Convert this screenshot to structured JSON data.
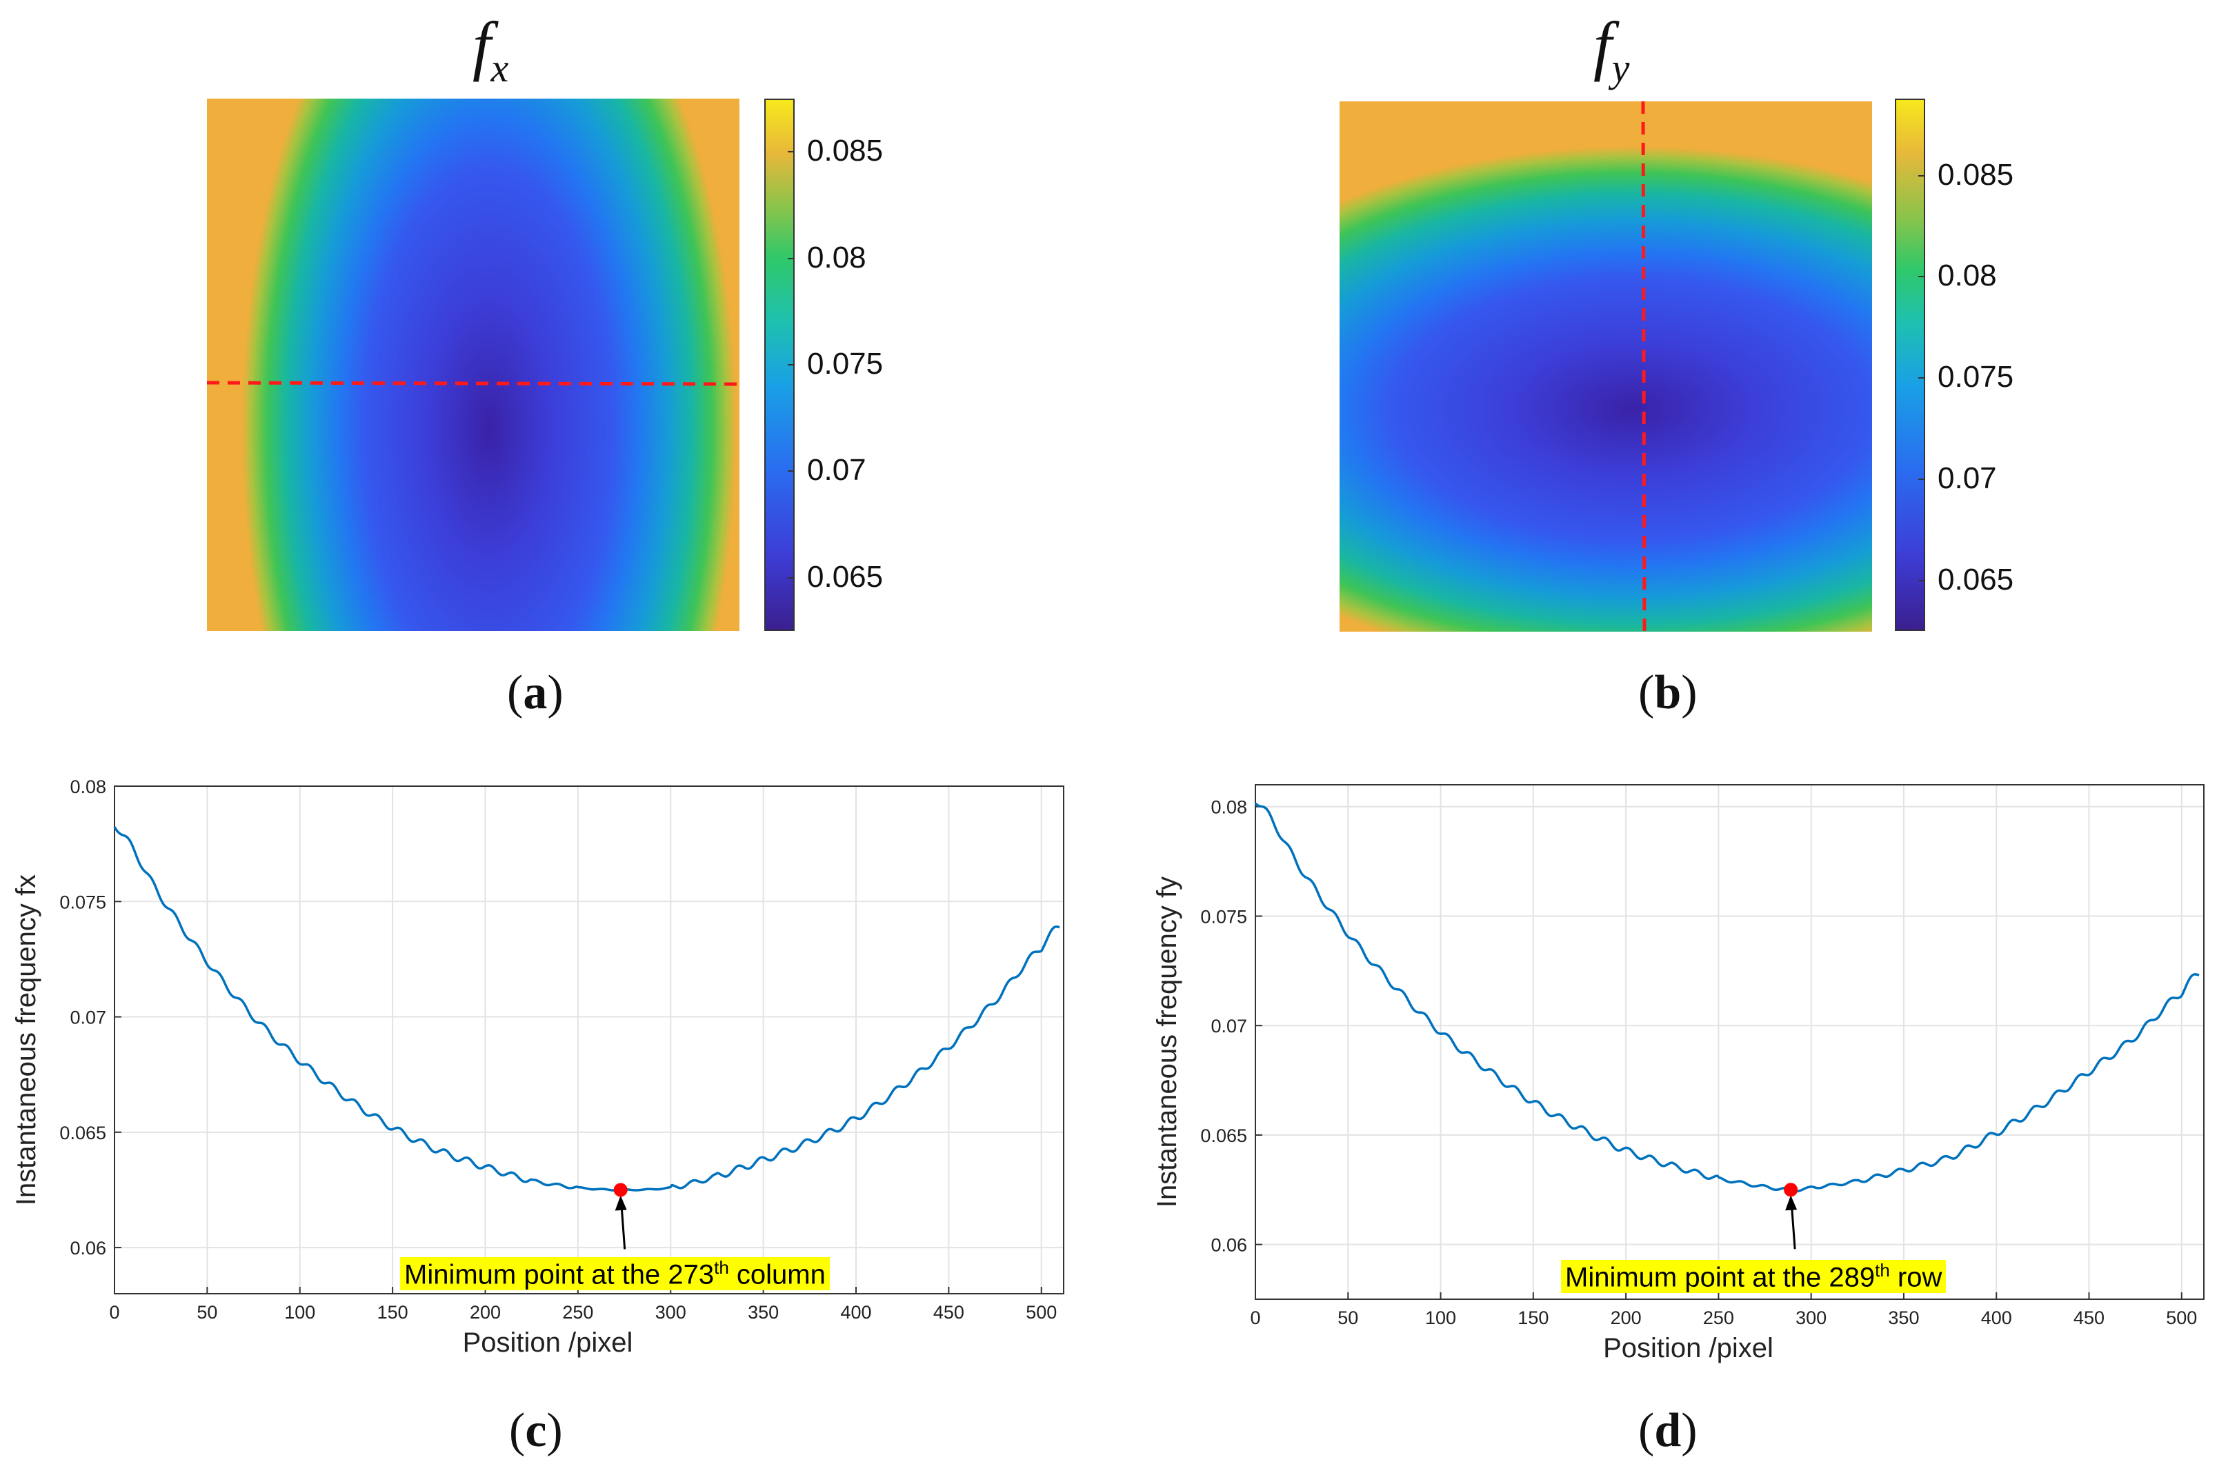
{
  "panels": {
    "a": {
      "label": "a",
      "title_main": "f",
      "title_sub": "x",
      "colorbar_ticks": [
        "0.085",
        "0.08",
        "0.075",
        "0.07",
        "0.065"
      ],
      "colorbar_tick_values": [
        0.085,
        0.08,
        0.075,
        0.07,
        0.065
      ],
      "colorbar_range": [
        0.0625,
        0.0875
      ]
    },
    "b": {
      "label": "b",
      "title_main": "f",
      "title_sub": "y",
      "colorbar_ticks": [
        "0.085",
        "0.08",
        "0.075",
        "0.07",
        "0.065"
      ],
      "colorbar_tick_values": [
        0.085,
        0.08,
        0.075,
        0.07,
        0.065
      ],
      "colorbar_range": [
        0.0625,
        0.0888
      ]
    },
    "c": {
      "label": "c",
      "annotation_prefix": "Minimum point at the 273",
      "annotation_sup": "th",
      "annotation_suffix": " column"
    },
    "d": {
      "label": "d",
      "annotation_prefix": "Minimum point at the 289",
      "annotation_sup": "th",
      "annotation_suffix": " row"
    }
  },
  "colors": {
    "line": "#0072bd",
    "marker": "#ff0000",
    "dashed": "#ff1a1a",
    "highlight": "#ffff00"
  },
  "chart_data": [
    {
      "type": "heatmap",
      "title": "f_x",
      "colorbar_ticks": [
        0.065,
        0.07,
        0.075,
        0.08,
        0.085
      ],
      "colorbar_range": [
        0.0625,
        0.0875
      ],
      "cross_section": "horizontal dashed line"
    },
    {
      "type": "heatmap",
      "title": "f_y",
      "colorbar_ticks": [
        0.065,
        0.07,
        0.075,
        0.08,
        0.085
      ],
      "colorbar_range": [
        0.0625,
        0.0888
      ],
      "cross_section": "vertical dashed line"
    },
    {
      "type": "line",
      "xlabel": "Position /pixel",
      "ylabel": "Instantaneous frequency fx",
      "xlim": [
        0,
        512
      ],
      "ylim": [
        0.058,
        0.08
      ],
      "xticks": [
        0,
        50,
        100,
        150,
        200,
        250,
        300,
        350,
        400,
        450,
        500
      ],
      "yticks": [
        0.06,
        0.065,
        0.07,
        0.075,
        0.08
      ],
      "ytick_labels": [
        "0.06",
        "0.065",
        "0.07",
        "0.075",
        "0.08"
      ],
      "min_point": [
        273,
        0.0625
      ],
      "series": [
        {
          "name": "fx",
          "x": [
            0,
            25,
            50,
            75,
            100,
            125,
            150,
            175,
            200,
            225,
            250,
            273,
            300,
            325,
            350,
            375,
            400,
            425,
            450,
            475,
            500,
            510
          ],
          "values": [
            0.0783,
            0.0752,
            0.0724,
            0.07,
            0.0681,
            0.0665,
            0.0652,
            0.0642,
            0.0635,
            0.0629,
            0.0626,
            0.0625,
            0.0626,
            0.0631,
            0.0638,
            0.0646,
            0.0656,
            0.067,
            0.0687,
            0.0707,
            0.073,
            0.0739
          ]
        }
      ]
    },
    {
      "type": "line",
      "xlabel": "Position /pixel",
      "ylabel": "Instantaneous frequency fy",
      "xlim": [
        0,
        512
      ],
      "ylim": [
        0.0575,
        0.081
      ],
      "xticks": [
        0,
        50,
        100,
        150,
        200,
        250,
        300,
        350,
        400,
        450,
        500
      ],
      "yticks": [
        0.06,
        0.065,
        0.07,
        0.075,
        0.08
      ],
      "ytick_labels": [
        "0.06",
        "0.065",
        "0.07",
        "0.075",
        "0.08"
      ],
      "min_point": [
        289,
        0.0625
      ],
      "series": [
        {
          "name": "fy",
          "x": [
            0,
            25,
            50,
            75,
            100,
            125,
            150,
            175,
            200,
            225,
            250,
            289,
            300,
            325,
            350,
            375,
            400,
            425,
            450,
            475,
            500,
            510
          ],
          "values": [
            0.0803,
            0.0771,
            0.0742,
            0.0718,
            0.0697,
            0.068,
            0.0665,
            0.0653,
            0.0643,
            0.0636,
            0.063,
            0.0625,
            0.0626,
            0.0629,
            0.0634,
            0.064,
            0.0651,
            0.0664,
            0.0679,
            0.0695,
            0.0715,
            0.0724
          ]
        }
      ]
    }
  ],
  "axes": {
    "xlabel": "Position /pixel",
    "ylabel_c": "Instantaneous frequency fx",
    "ylabel_d": "Instantaneous frequency fy"
  }
}
